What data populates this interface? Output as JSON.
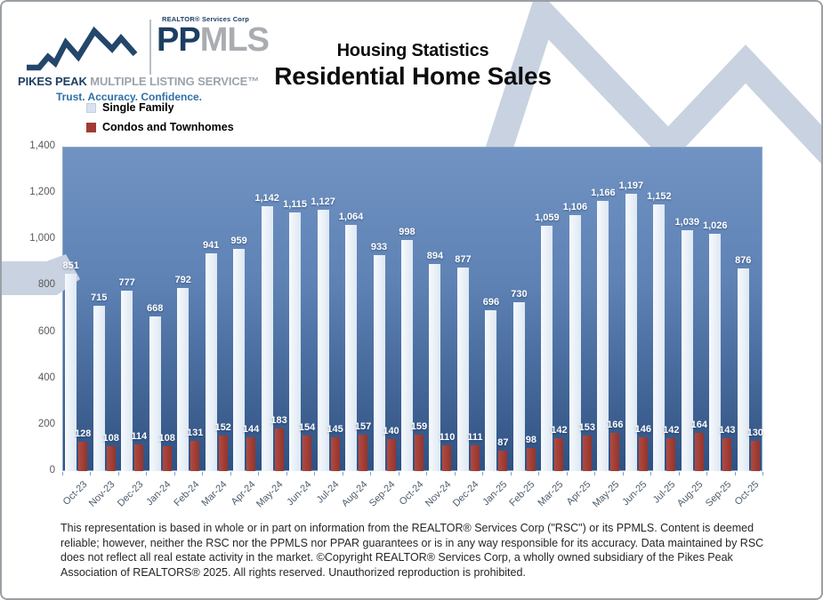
{
  "logo": {
    "realtor_services": "REALTOR® Services Corp",
    "ppmls_pp": "PP",
    "ppmls_mls": "MLS",
    "pikes_peak": "PIKES PEAK",
    "mls_service": " MULTIPLE LISTING SERVICE™",
    "tagline": "Trust. Accuracy. Confidence."
  },
  "title": {
    "line1": "Housing Statistics",
    "line2": "Residential Home Sales"
  },
  "legend": {
    "single_family": "Single Family",
    "condos": "Condos and Townhomes"
  },
  "colors": {
    "single_family_bar": "#e9eff8",
    "single_family_swatch": "#d9e3f0",
    "condos_bar": "#a23a33",
    "plot_gradient_top": "#7093c3",
    "plot_gradient_bottom": "#2f5182",
    "watermark": "#c9d2e0",
    "navy": "#1c3e63",
    "logo_gray": "#a9adb2",
    "tagline_blue": "#2f6fa8"
  },
  "chart_data": {
    "type": "bar",
    "title": "Residential Home Sales",
    "subtitle": "Housing Statistics",
    "xlabel": "",
    "ylabel": "",
    "ylim": [
      0,
      1400
    ],
    "ytick_values": [
      0,
      200,
      400,
      600,
      800,
      1000,
      1200,
      1400
    ],
    "ytick_labels": [
      "0",
      "200",
      "400",
      "600",
      "800",
      "1,000",
      "1,200",
      "1,400"
    ],
    "grid": false,
    "legend_position": "top-left",
    "categories": [
      "Oct-23",
      "Nov-23",
      "Dec-23",
      "Jan-24",
      "Feb-24",
      "Mar-24",
      "Apr-24",
      "May-24",
      "Jun-24",
      "Jul-24",
      "Aug-24",
      "Sep-24",
      "Oct-24",
      "Nov-24",
      "Dec-24",
      "Jan-25",
      "Feb-25",
      "Mar-25",
      "Apr-25",
      "May-25",
      "Jun-25",
      "Jul-25",
      "Aug-25",
      "Sep-25",
      "Oct-25"
    ],
    "series": [
      {
        "name": "Single Family",
        "values": [
          851,
          715,
          777,
          668,
          792,
          941,
          959,
          1142,
          1115,
          1127,
          1064,
          933,
          998,
          894,
          877,
          696,
          730,
          1059,
          1106,
          1166,
          1197,
          1152,
          1039,
          1026,
          876
        ]
      },
      {
        "name": "Condos and Townhomes",
        "values": [
          128,
          108,
          114,
          108,
          131,
          152,
          144,
          183,
          154,
          145,
          157,
          140,
          159,
          110,
          111,
          87,
          98,
          142,
          153,
          166,
          146,
          142,
          164,
          143,
          130
        ]
      }
    ]
  },
  "footer": {
    "disclaimer": "This representation is based in whole or in part on information from the REALTOR® Services Corp (\"RSC\") or its PPMLS. Content is deemed reliable; however, neither the RSC nor the PPMLS nor PPAR guarantees or is in any way responsible for its accuracy. Data maintained by RSC does not reflect all real estate activity in the market. ©Copyright REALTOR® Services Corp, a wholly owned subsidiary of the Pikes Peak Association of REALTORS® 2025. All rights reserved. Unauthorized reproduction is prohibited."
  }
}
